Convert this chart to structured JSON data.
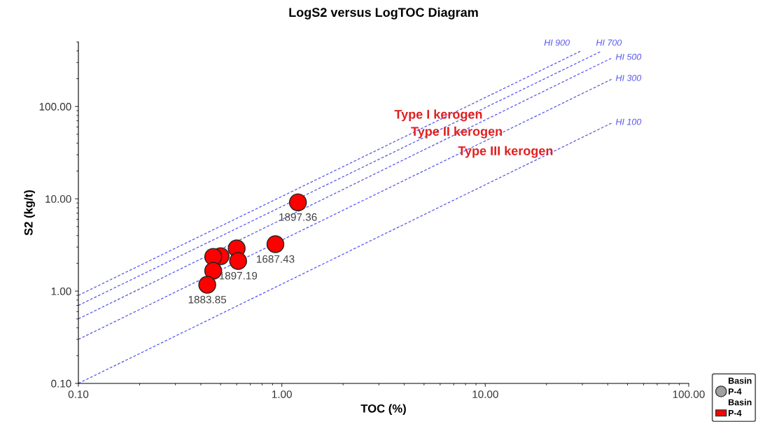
{
  "chart_data": {
    "type": "scatter",
    "title": "LogS2 versus LogTOC Diagram",
    "xlabel": "TOC (%)",
    "ylabel": "S2 (kg/t)",
    "log": "xy",
    "xlim": [
      0.1,
      100
    ],
    "ylim": [
      0.1,
      500
    ],
    "xticks": [
      {
        "value": 0.1,
        "label": "0.10"
      },
      {
        "value": 1,
        "label": "1.00"
      },
      {
        "value": 10,
        "label": "10.00"
      },
      {
        "value": 100,
        "label": "100.00"
      }
    ],
    "yticks": [
      {
        "value": 0.1,
        "label": "0.10"
      },
      {
        "value": 1,
        "label": "1.00"
      },
      {
        "value": 10,
        "label": "10.00"
      },
      {
        "value": 100,
        "label": "100.00"
      }
    ],
    "grid": false,
    "legend": "bottom right",
    "legend_title": "Basin",
    "series": [
      {
        "type": "line",
        "name": "HI 900",
        "color": "#5555ee",
        "line_style": "dashed",
        "marker": "none",
        "x": [
          0.1,
          29.3
        ],
        "values": [
          0.9,
          396
        ]
      },
      {
        "type": "line",
        "name": "HI 700",
        "color": "#5555ee",
        "line_style": "dashed",
        "marker": "none",
        "x": [
          0.1,
          37.1
        ],
        "values": [
          0.7,
          396
        ]
      },
      {
        "type": "line",
        "name": "HI 500",
        "color": "#5555ee",
        "line_style": "dashed",
        "marker": "none",
        "x": [
          0.1,
          42.3
        ],
        "values": [
          0.5,
          339
        ]
      },
      {
        "type": "line",
        "name": "HI 300",
        "color": "#5555ee",
        "line_style": "dashed",
        "marker": "none",
        "x": [
          0.1,
          42.3
        ],
        "values": [
          0.3,
          200
        ]
      },
      {
        "type": "line",
        "name": "HI 100",
        "color": "#5555ee",
        "line_style": "dashed",
        "marker": "none",
        "x": [
          0.1,
          42.3
        ],
        "values": [
          0.1,
          67
        ]
      },
      {
        "name": "P-4",
        "color": "#a0a0a0",
        "marker": "circle"
      },
      {
        "name": "P-4",
        "color": "#ff0000",
        "marker": "circle",
        "x": [
          1.2,
          0.93,
          0.6,
          0.61,
          0.5,
          0.46,
          0.46,
          0.43
        ],
        "values": [
          9.16,
          3.22,
          2.9,
          2.12,
          2.39,
          2.35,
          1.66,
          1.17
        ]
      }
    ],
    "annotations": [
      "Type I kerogen",
      "Type II kerogen",
      "Type III kerogen",
      {
        "text": "1897.36",
        "x": 1.2,
        "y": 9.16
      },
      {
        "text": "1687.43",
        "x": 0.93,
        "y": 3.22
      },
      {
        "text": "1897.19",
        "x": 0.61,
        "y": 2.12
      },
      {
        "text": "1883.85",
        "x": 0.43,
        "y": 1.17
      }
    ]
  }
}
